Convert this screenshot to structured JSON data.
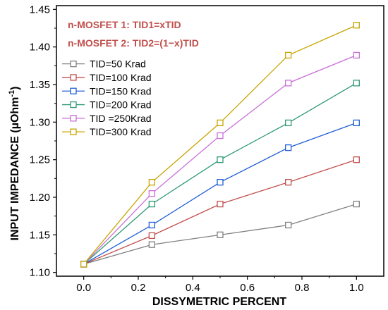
{
  "chart_data": {
    "type": "line",
    "xlabel": "DISSYMETRIC PERCENT",
    "ylabel_main": "INPUT IMPEDANCE (µOhm",
    "ylabel_sup": "-1",
    "ylabel_end": ")",
    "xlim": [
      -0.1,
      1.1
    ],
    "ylim": [
      1.095,
      1.455
    ],
    "xticks": [
      0.0,
      0.2,
      0.4,
      0.6,
      0.8,
      1.0
    ],
    "xtick_labels": [
      "0.0",
      "0.2",
      "0.4",
      "0.6",
      "0.8",
      "1.0"
    ],
    "yticks": [
      1.1,
      1.15,
      1.2,
      1.25,
      1.3,
      1.35,
      1.4,
      1.45
    ],
    "ytick_labels": [
      "1.10",
      "1.15",
      "1.20",
      "1.25",
      "1.30",
      "1.35",
      "1.40",
      "1.45"
    ],
    "x": [
      0.0,
      0.25,
      0.5,
      0.75,
      1.0
    ],
    "annotations": [
      {
        "text": "n-MOSFET 1: TID1=xTID",
        "color": "#c0504d"
      },
      {
        "text": "n-MOSFET 2: TID2=(1−x)TID",
        "color": "#c0504d"
      }
    ],
    "legend_position": "upper-left",
    "grid": false,
    "series": [
      {
        "name": "TID=50  Krad",
        "color": "#808080",
        "values": [
          1.111,
          1.137,
          1.15,
          1.163,
          1.191
        ]
      },
      {
        "name": "TID=100 Krad",
        "color": "#c0504d",
        "values": [
          1.111,
          1.149,
          1.191,
          1.22,
          1.25
        ]
      },
      {
        "name": "TID=150 Krad",
        "color": "#1f5fd6",
        "values": [
          1.111,
          1.163,
          1.22,
          1.266,
          1.299
        ]
      },
      {
        "name": "TID=200 Krad",
        "color": "#2e9a73",
        "values": [
          1.111,
          1.191,
          1.25,
          1.299,
          1.352
        ]
      },
      {
        "name": "TID =250Krad",
        "color": "#c86fd6",
        "values": [
          1.111,
          1.205,
          1.282,
          1.352,
          1.389
        ]
      },
      {
        "name": "TID=300 Krad",
        "color": "#c8a400",
        "values": [
          1.111,
          1.22,
          1.299,
          1.389,
          1.429
        ]
      }
    ]
  }
}
